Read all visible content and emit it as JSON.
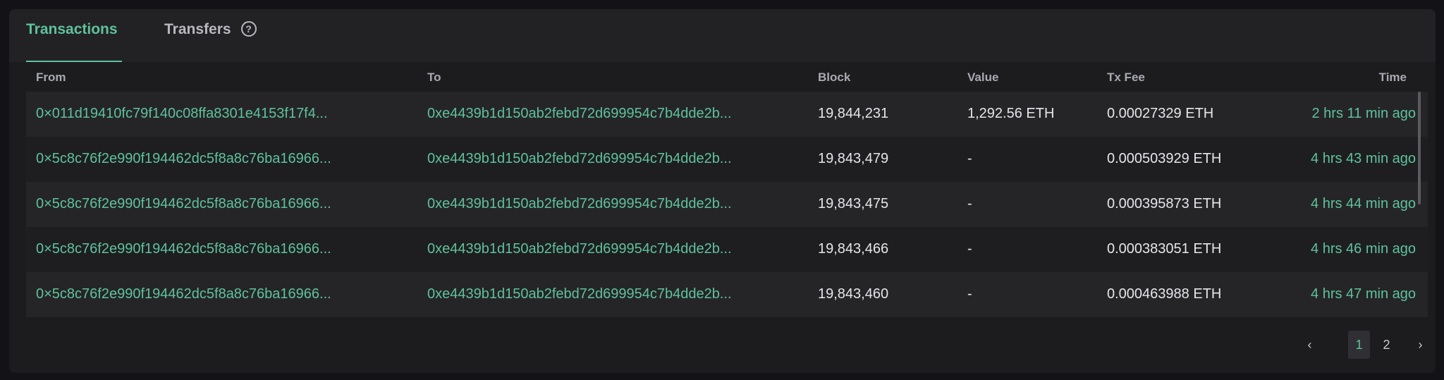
{
  "tabs": [
    {
      "label": "Transactions",
      "active": true
    },
    {
      "label": "Transfers",
      "active": false
    }
  ],
  "help_icon": "?",
  "columns": [
    "From",
    "To",
    "Block",
    "Value",
    "Tx Fee",
    "Time"
  ],
  "rows": [
    {
      "from": "0×011d19410fc79f140c08ffa8301e4153f17f4...",
      "to": "0xe4439b1d150ab2febd72d699954c7b4dde2b...",
      "block": "19,844,231",
      "value": "1,292.56 ETH",
      "fee": "0.00027329",
      "fee_unit": "ETH",
      "time": "2 hrs 11 min ago"
    },
    {
      "from": "0×5c8c76f2e990f194462dc5f8a8c76ba16966...",
      "to": "0xe4439b1d150ab2febd72d699954c7b4dde2b...",
      "block": "19,843,479",
      "value": "-",
      "fee": "0.000503929",
      "fee_unit": "ETH",
      "time": "4 hrs 43 min ago"
    },
    {
      "from": "0×5c8c76f2e990f194462dc5f8a8c76ba16966...",
      "to": "0xe4439b1d150ab2febd72d699954c7b4dde2b...",
      "block": "19,843,475",
      "value": "-",
      "fee": "0.000395873",
      "fee_unit": "ETH",
      "time": "4 hrs 44 min ago"
    },
    {
      "from": "0×5c8c76f2e990f194462dc5f8a8c76ba16966...",
      "to": "0xe4439b1d150ab2febd72d699954c7b4dde2b...",
      "block": "19,843,466",
      "value": "-",
      "fee": "0.000383051",
      "fee_unit": "ETH",
      "time": "4 hrs 46 min ago"
    },
    {
      "from": "0×5c8c76f2e990f194462dc5f8a8c76ba16966...",
      "to": "0xe4439b1d150ab2febd72d699954c7b4dde2b...",
      "block": "19,843,460",
      "value": "-",
      "fee": "0.000463988",
      "fee_unit": "ETH",
      "time": "4 hrs 47 min ago"
    }
  ],
  "pagination": {
    "prev": "‹",
    "pages": [
      "1",
      "2"
    ],
    "current": "1",
    "next": "›"
  },
  "colors": {
    "accent": "#5fc29a",
    "card": "#1c1c1f",
    "background": "#131317"
  }
}
